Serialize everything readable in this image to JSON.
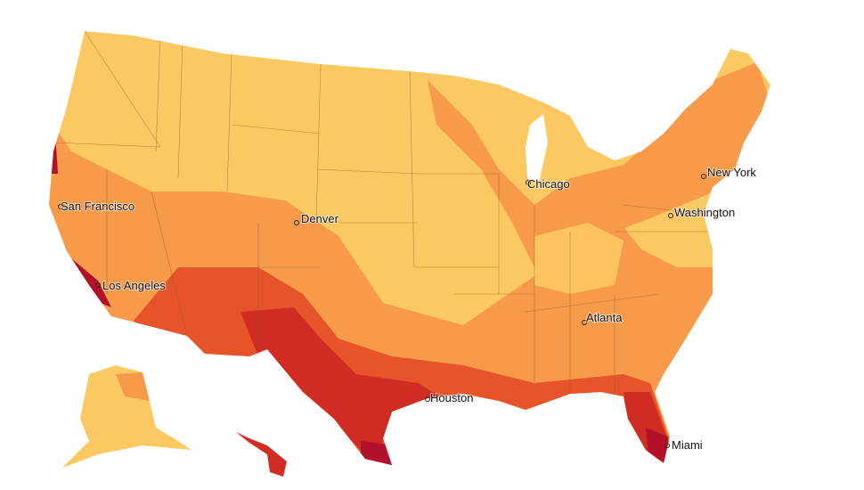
{
  "cities": [
    {
      "label": "San Francisco"
    },
    {
      "label": "Denver"
    },
    {
      "label": "Los Angeles"
    },
    {
      "label": "Chicago"
    },
    {
      "label": "New York"
    },
    {
      "label": "Washington"
    },
    {
      "label": "Atlanta"
    },
    {
      "label": "Houston"
    },
    {
      "label": "Miami"
    }
  ]
}
